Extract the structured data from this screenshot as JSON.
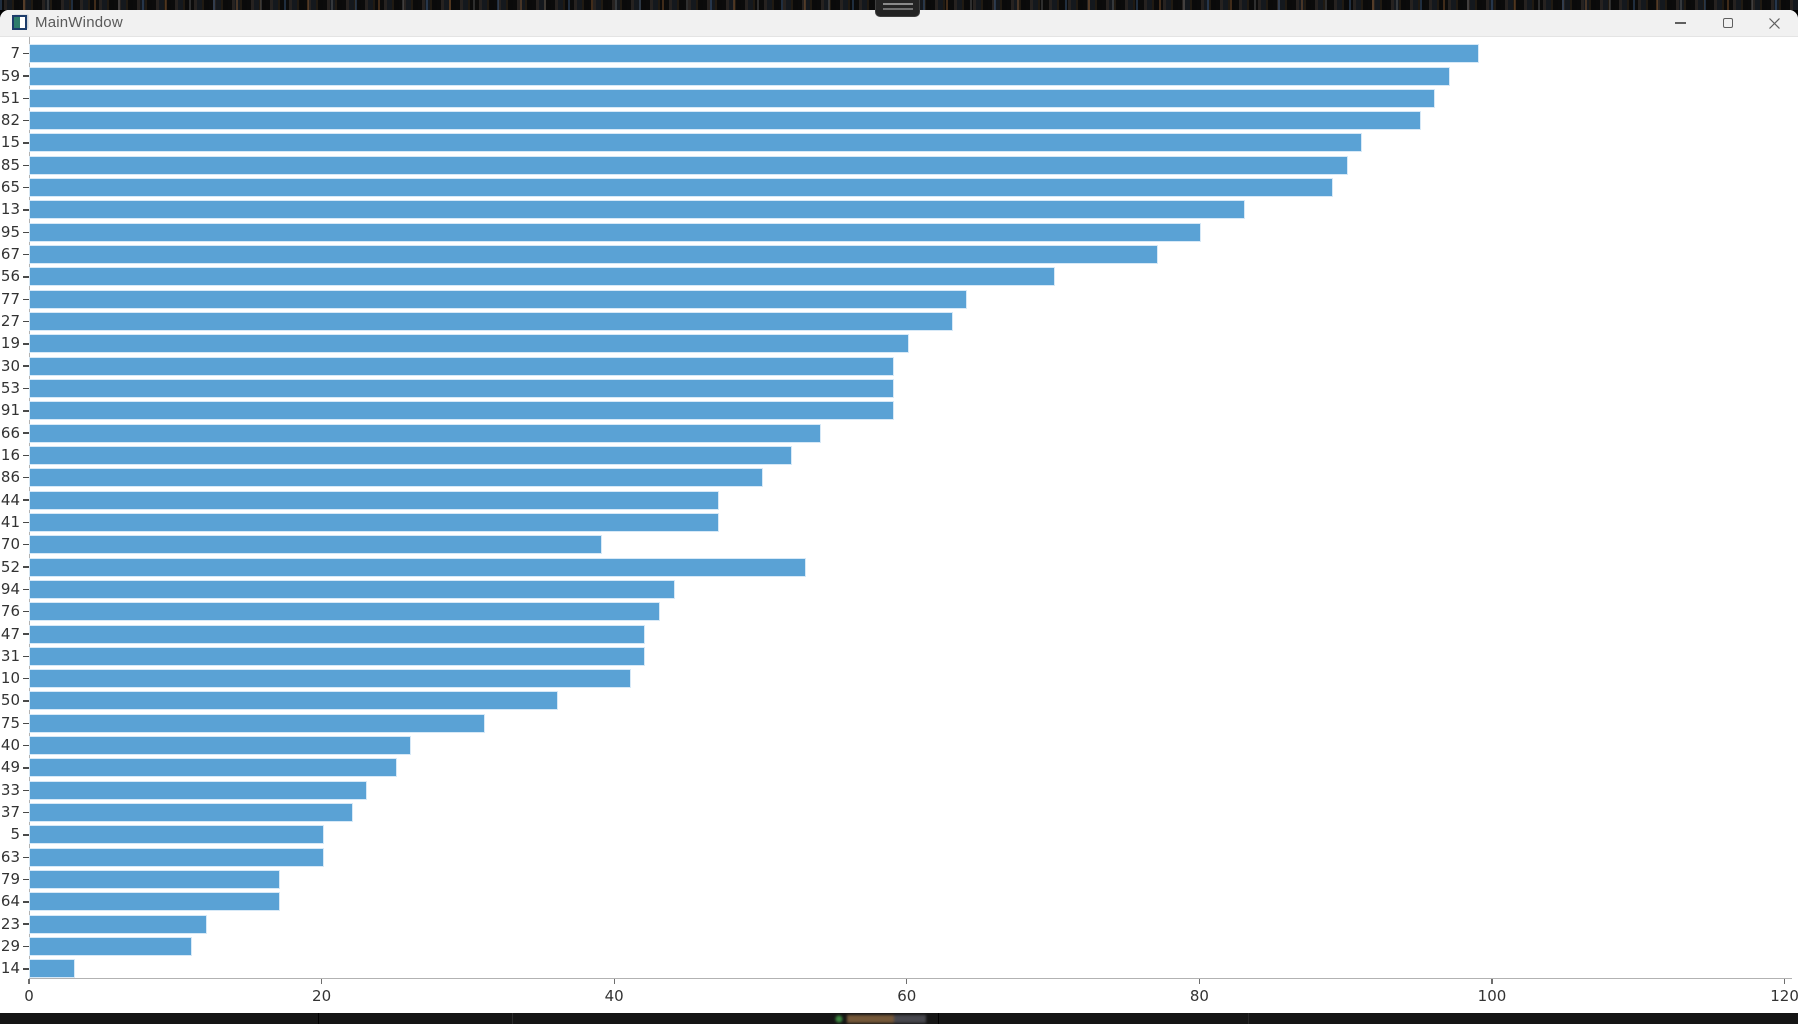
{
  "window": {
    "title": "MainWindow",
    "controls": {
      "minimize": "minimize",
      "maximize": "maximize",
      "close": "close"
    }
  },
  "chart_data": {
    "type": "bar",
    "orientation": "horizontal",
    "title": "",
    "xlabel": "",
    "ylabel": "",
    "categories": [
      "7",
      "59",
      "51",
      "82",
      "15",
      "85",
      "65",
      "13",
      "95",
      "67",
      "56",
      "77",
      "27",
      "19",
      "30",
      "53",
      "91",
      "66",
      "16",
      "86",
      "44",
      "41",
      "70",
      "52",
      "94",
      "76",
      "47",
      "31",
      "10",
      "50",
      "75",
      "40",
      "49",
      "33",
      "37",
      "5",
      "63",
      "79",
      "64",
      "23",
      "29",
      "14"
    ],
    "values": [
      99,
      97,
      96,
      95,
      91,
      90,
      89,
      83,
      80,
      77,
      70,
      64,
      63,
      60,
      59,
      59,
      59,
      54,
      52,
      50,
      47,
      47,
      39,
      53,
      44,
      43,
      42,
      42,
      41,
      36,
      31,
      26,
      25,
      23,
      22,
      20,
      20,
      17,
      17,
      12,
      11,
      3
    ],
    "xlim": [
      0,
      120
    ],
    "x_ticks": [
      0,
      20,
      40,
      60,
      80,
      100,
      120
    ],
    "grid": false,
    "legend": false,
    "bar_color": "#5aa2d5"
  },
  "colors": {
    "bar": "#5aa2d5",
    "titlebar_bg": "#f1f1f1",
    "axis": "#b2b2b2",
    "tick_text": "#333333"
  }
}
